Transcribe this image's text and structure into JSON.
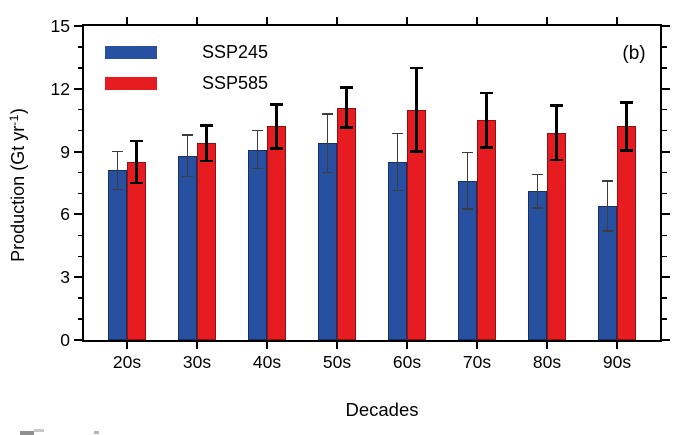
{
  "chart_data": {
    "type": "bar",
    "title": "",
    "panel_label": "(b)",
    "categories": [
      "20s",
      "30s",
      "40s",
      "50s",
      "60s",
      "70s",
      "80s",
      "90s"
    ],
    "series": [
      {
        "name": "SSP245",
        "color": "#2750A0",
        "error_color": "#3d3d3d",
        "values": [
          8.1,
          8.8,
          9.1,
          9.4,
          8.5,
          7.6,
          7.1,
          6.4
        ],
        "errors": [
          0.9,
          1.0,
          0.9,
          1.4,
          1.35,
          1.35,
          0.8,
          1.2
        ]
      },
      {
        "name": "SSP585",
        "color": "#E61C20",
        "error_color": "#000000",
        "values": [
          8.5,
          9.4,
          10.2,
          11.1,
          11.0,
          10.5,
          9.9,
          10.2
        ],
        "errors": [
          1.0,
          0.85,
          1.05,
          0.95,
          2.0,
          1.3,
          1.3,
          1.15
        ]
      }
    ],
    "xlabel": "Decades",
    "ylabel": {
      "pre": "Production (Gt yr",
      "sup": "-1",
      "post": ")"
    },
    "ylim": [
      0,
      15
    ],
    "y_major_step": 3,
    "y_minor_step": 1,
    "y_tick_labels": [
      "0",
      "3",
      "6",
      "9",
      "12",
      "15"
    ],
    "legend_position": "top-left",
    "grid": false,
    "axes_box": true
  }
}
